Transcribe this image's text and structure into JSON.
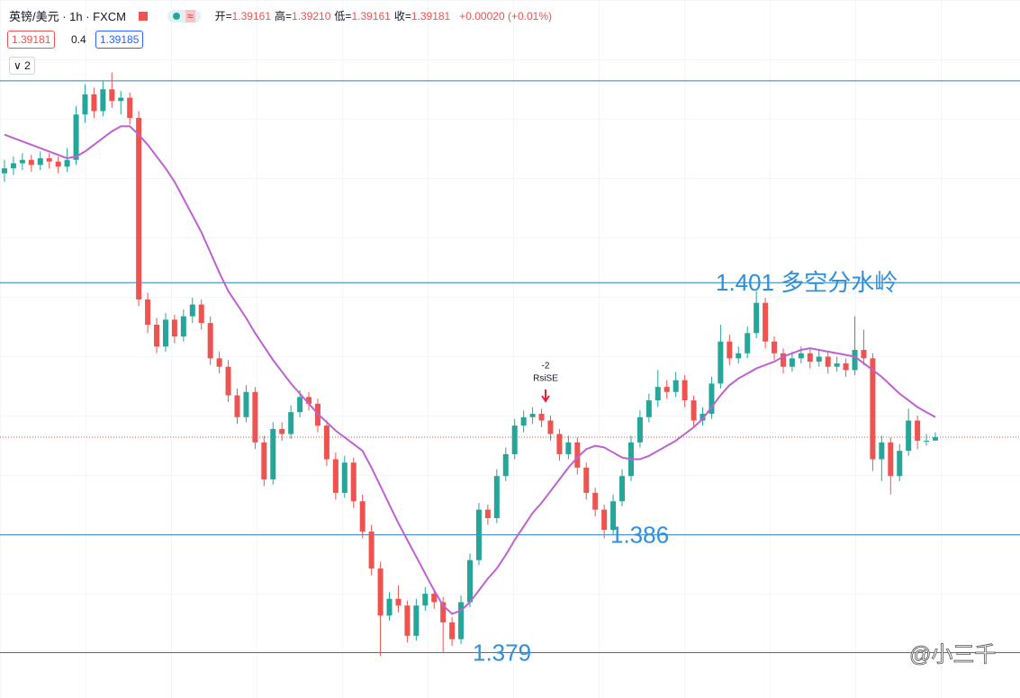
{
  "header": {
    "symbol": "英镑/美元 · 1h · FXCM",
    "ohlc": [
      {
        "label": "开=",
        "value": "1.39161"
      },
      {
        "label": "高=",
        "value": "1.39210"
      },
      {
        "label": "低=",
        "value": "1.39161"
      },
      {
        "label": "收=",
        "value": "1.39181"
      }
    ],
    "change": "+0.00020 (+0.01%)",
    "bid": 1.39181,
    "spread": 0.4,
    "ask": 1.39185,
    "indicators": "2"
  },
  "chart_data": {
    "type": "candlestick",
    "up_color": "#26a69a",
    "down_color": "#ef5350",
    "ma_color": "#bd62d0",
    "level_color": "#2a7fc4",
    "label_color": "#2f8fdc",
    "ylim": [
      1.3763,
      1.4146
    ],
    "levels": [
      {
        "value": 1.413
      },
      {
        "value": 1.401,
        "label": "1.401 多空分水岭"
      },
      {
        "value": 1.386,
        "label": "1.386"
      },
      {
        "value": 1.379,
        "label": "1.379"
      }
    ],
    "signal": {
      "value": -2,
      "text": "RsiSE"
    },
    "watermark": "@小三千",
    "candles": [
      [
        1.4075,
        1.4083,
        1.407,
        1.4078
      ],
      [
        1.4078,
        1.4085,
        1.4074,
        1.4081
      ],
      [
        1.4081,
        1.4087,
        1.4077,
        1.4083
      ],
      [
        1.4083,
        1.4086,
        1.4076,
        1.408
      ],
      [
        1.408,
        1.4088,
        1.4077,
        1.4084
      ],
      [
        1.4084,
        1.4087,
        1.4078,
        1.4082
      ],
      [
        1.4082,
        1.4085,
        1.4075,
        1.4079
      ],
      [
        1.4079,
        1.409,
        1.4076,
        1.4083
      ],
      [
        1.4083,
        1.4115,
        1.408,
        1.411
      ],
      [
        1.411,
        1.4128,
        1.4105,
        1.4122
      ],
      [
        1.4122,
        1.4126,
        1.4108,
        1.4112
      ],
      [
        1.4112,
        1.413,
        1.4109,
        1.4125
      ],
      [
        1.4125,
        1.4135,
        1.4114,
        1.4118
      ],
      [
        1.4118,
        1.4124,
        1.411,
        1.412
      ],
      [
        1.412,
        1.4123,
        1.4104,
        1.4108
      ],
      [
        1.4108,
        1.4112,
        1.3996,
        1.4
      ],
      [
        1.4,
        1.4004,
        1.398,
        1.3985
      ],
      [
        1.3985,
        1.3989,
        1.3968,
        1.3972
      ],
      [
        1.3972,
        1.3992,
        1.3969,
        1.3988
      ],
      [
        1.3988,
        1.3991,
        1.3974,
        1.3978
      ],
      [
        1.3978,
        1.3994,
        1.3975,
        1.399
      ],
      [
        1.399,
        1.4001,
        1.3986,
        1.3997
      ],
      [
        1.3997,
        1.4,
        1.3982,
        1.3986
      ],
      [
        1.3986,
        1.399,
        1.3961,
        1.3965
      ],
      [
        1.3965,
        1.3969,
        1.3956,
        1.396
      ],
      [
        1.396,
        1.3964,
        1.3939,
        1.3943
      ],
      [
        1.3943,
        1.3947,
        1.3926,
        1.393
      ],
      [
        1.393,
        1.3949,
        1.3927,
        1.3945
      ],
      [
        1.3945,
        1.3948,
        1.3911,
        1.3915
      ],
      [
        1.3915,
        1.3919,
        1.3889,
        1.3893
      ],
      [
        1.3893,
        1.3927,
        1.389,
        1.3923
      ],
      [
        1.3923,
        1.3927,
        1.3916,
        1.392
      ],
      [
        1.392,
        1.3937,
        1.3917,
        1.3933
      ],
      [
        1.3933,
        1.3946,
        1.393,
        1.3942
      ],
      [
        1.3942,
        1.3945,
        1.3934,
        1.3938
      ],
      [
        1.3938,
        1.3941,
        1.3921,
        1.3925
      ],
      [
        1.3925,
        1.3928,
        1.3901,
        1.3905
      ],
      [
        1.3905,
        1.3909,
        1.3881,
        1.3885
      ],
      [
        1.3885,
        1.3907,
        1.3882,
        1.3903
      ],
      [
        1.3903,
        1.3906,
        1.3876,
        1.388
      ],
      [
        1.388,
        1.3884,
        1.3858,
        1.3862
      ],
      [
        1.3862,
        1.3866,
        1.3836,
        1.384
      ],
      [
        1.384,
        1.3844,
        1.3788,
        1.3812
      ],
      [
        1.3812,
        1.3826,
        1.3809,
        1.3822
      ],
      [
        1.3822,
        1.383,
        1.3814,
        1.3818
      ],
      [
        1.3818,
        1.3821,
        1.3796,
        1.38
      ],
      [
        1.38,
        1.3822,
        1.3797,
        1.3818
      ],
      [
        1.3818,
        1.3829,
        1.3815,
        1.3825
      ],
      [
        1.3825,
        1.3828,
        1.3816,
        1.382
      ],
      [
        1.382,
        1.3823,
        1.379,
        1.3808
      ],
      [
        1.3808,
        1.3811,
        1.3794,
        1.3798
      ],
      [
        1.3798,
        1.3824,
        1.3795,
        1.382
      ],
      [
        1.382,
        1.3849,
        1.3817,
        1.3845
      ],
      [
        1.3845,
        1.3879,
        1.3842,
        1.3875
      ],
      [
        1.3875,
        1.3878,
        1.3866,
        1.387
      ],
      [
        1.387,
        1.3899,
        1.3867,
        1.3895
      ],
      [
        1.3895,
        1.3912,
        1.3892,
        1.3908
      ],
      [
        1.3908,
        1.3929,
        1.3905,
        1.3925
      ],
      [
        1.3925,
        1.3934,
        1.3921,
        1.393
      ],
      [
        1.393,
        1.3936,
        1.3926,
        1.3932
      ],
      [
        1.3932,
        1.3935,
        1.3924,
        1.3928
      ],
      [
        1.3928,
        1.3931,
        1.3916,
        1.392
      ],
      [
        1.392,
        1.3923,
        1.3904,
        1.3908
      ],
      [
        1.3908,
        1.3919,
        1.3905,
        1.3915
      ],
      [
        1.3915,
        1.3918,
        1.3896,
        1.39
      ],
      [
        1.39,
        1.3903,
        1.3881,
        1.3885
      ],
      [
        1.3885,
        1.3888,
        1.3871,
        1.3875
      ],
      [
        1.3875,
        1.3878,
        1.3858,
        1.3863
      ],
      [
        1.3863,
        1.3884,
        1.386,
        1.388
      ],
      [
        1.388,
        1.3899,
        1.3877,
        1.3895
      ],
      [
        1.3895,
        1.3919,
        1.3892,
        1.3915
      ],
      [
        1.3915,
        1.3934,
        1.3912,
        1.393
      ],
      [
        1.393,
        1.3944,
        1.3927,
        1.394
      ],
      [
        1.394,
        1.3958,
        1.3936,
        1.3948
      ],
      [
        1.3948,
        1.3952,
        1.3941,
        1.3945
      ],
      [
        1.3945,
        1.3957,
        1.3942,
        1.3952
      ],
      [
        1.3952,
        1.3955,
        1.3936,
        1.394
      ],
      [
        1.394,
        1.3943,
        1.3924,
        1.3928
      ],
      [
        1.3928,
        1.3936,
        1.3925,
        1.3932
      ],
      [
        1.3932,
        1.3954,
        1.3929,
        1.395
      ],
      [
        1.395,
        1.3985,
        1.3947,
        1.3975
      ],
      [
        1.3975,
        1.3979,
        1.3961,
        1.3965
      ],
      [
        1.3965,
        1.3972,
        1.3962,
        1.3968
      ],
      [
        1.3968,
        1.3984,
        1.3965,
        1.398
      ],
      [
        1.398,
        1.4005,
        1.3977,
        1.3998
      ],
      [
        1.3998,
        1.4001,
        1.3971,
        1.3975
      ],
      [
        1.3975,
        1.3978,
        1.3964,
        1.3968
      ],
      [
        1.3968,
        1.3971,
        1.3956,
        1.396
      ],
      [
        1.396,
        1.3969,
        1.3957,
        1.3965
      ],
      [
        1.3965,
        1.3972,
        1.3962,
        1.3968
      ],
      [
        1.3968,
        1.3971,
        1.3959,
        1.3963
      ],
      [
        1.3963,
        1.397,
        1.396,
        1.3966
      ],
      [
        1.3966,
        1.3969,
        1.3956,
        1.396
      ],
      [
        1.396,
        1.3966,
        1.3957,
        1.3962
      ],
      [
        1.3962,
        1.3965,
        1.3954,
        1.3958
      ],
      [
        1.3958,
        1.399,
        1.3955,
        1.397
      ],
      [
        1.397,
        1.3982,
        1.3961,
        1.3965
      ],
      [
        1.3965,
        1.3968,
        1.3898,
        1.3905
      ],
      [
        1.3905,
        1.3919,
        1.3892,
        1.3915
      ],
      [
        1.3915,
        1.3918,
        1.3884,
        1.3895
      ],
      [
        1.3895,
        1.3914,
        1.3892,
        1.391
      ],
      [
        1.391,
        1.3935,
        1.3907,
        1.3928
      ],
      [
        1.3928,
        1.3931,
        1.3911,
        1.3916
      ],
      [
        1.3916,
        1.392,
        1.3913,
        1.3916
      ],
      [
        1.39161,
        1.3921,
        1.39161,
        1.39181
      ]
    ],
    "ma": [
      1.4098,
      1.4096,
      1.4094,
      1.4092,
      1.409,
      1.4088,
      1.4086,
      1.4084,
      1.4085,
      1.4088,
      1.4092,
      1.4096,
      1.41,
      1.4103,
      1.4103,
      1.4098,
      1.4092,
      1.4085,
      1.4078,
      1.407,
      1.406,
      1.405,
      1.404,
      1.4028,
      1.4016,
      1.4005,
      1.3997,
      1.3989,
      1.398,
      1.3972,
      1.3964,
      1.3957,
      1.395,
      1.3944,
      1.3938,
      1.3932,
      1.3927,
      1.3922,
      1.3918,
      1.3914,
      1.391,
      1.39,
      1.3889,
      1.3878,
      1.3867,
      1.3857,
      1.3847,
      1.3837,
      1.3827,
      1.3818,
      1.3813,
      1.3815,
      1.382,
      1.3827,
      1.3834,
      1.384,
      1.3848,
      1.3857,
      1.3865,
      1.3873,
      1.3879,
      1.3886,
      1.3893,
      1.39,
      1.3906,
      1.3911,
      1.3913,
      1.3912,
      1.3909,
      1.3906,
      1.3905,
      1.3905,
      1.3907,
      1.391,
      1.3913,
      1.3916,
      1.392,
      1.3924,
      1.3929,
      1.3936,
      1.3943,
      1.3949,
      1.3953,
      1.3956,
      1.3959,
      1.3961,
      1.3963,
      1.3966,
      1.3968,
      1.397,
      1.3971,
      1.397,
      1.3969,
      1.3968,
      1.3967,
      1.3966,
      1.3962,
      1.3958,
      1.3954,
      1.3949,
      1.3944,
      1.394,
      1.3936,
      1.3933,
      1.393
    ]
  }
}
